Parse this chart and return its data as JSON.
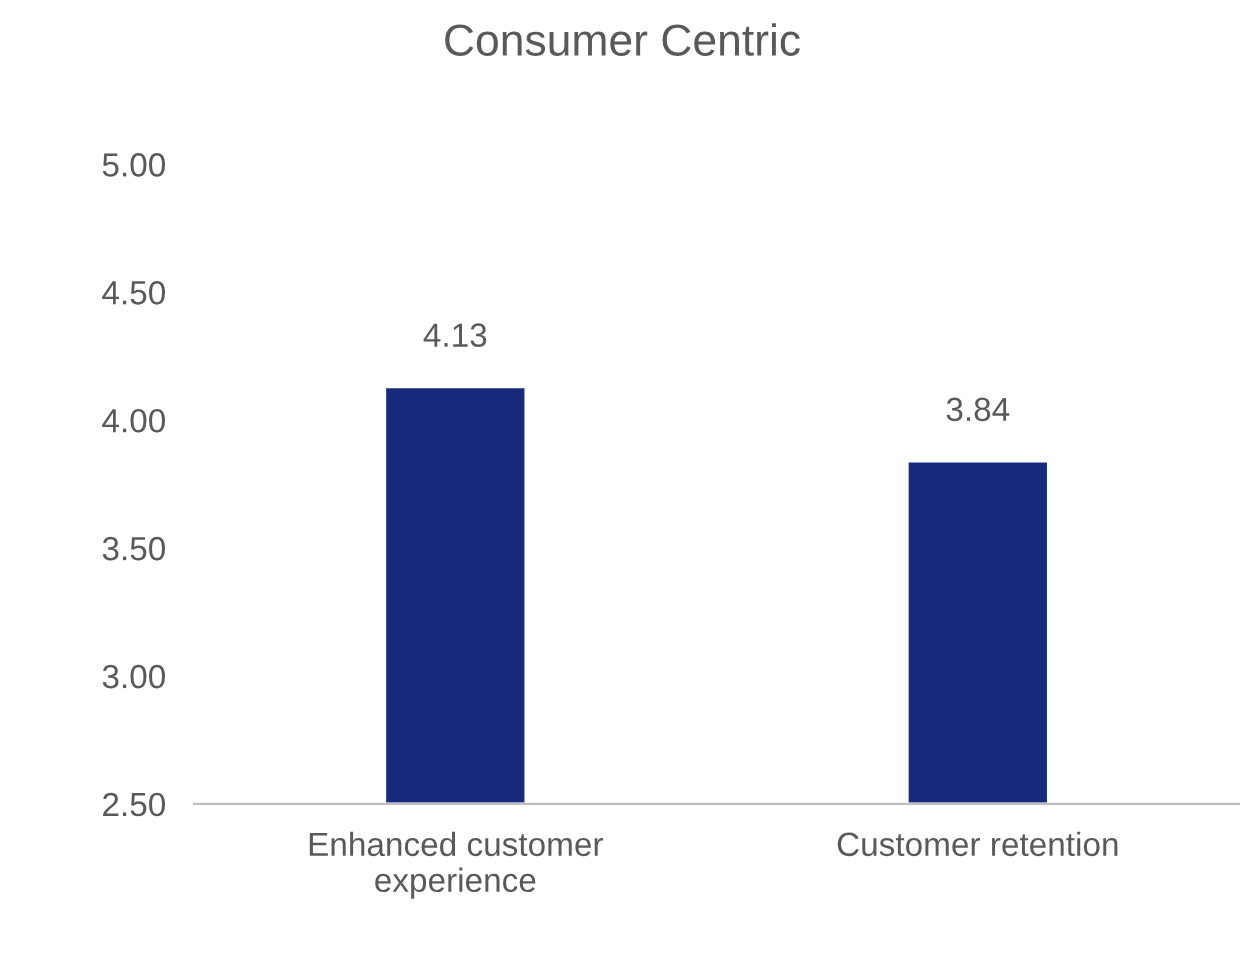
{
  "chart_data": {
    "type": "bar",
    "title": "Consumer Centric",
    "categories": [
      "Enhanced customer experience",
      "Customer retention"
    ],
    "values": [
      4.13,
      3.84
    ],
    "color": "#172a7c",
    "ylim": [
      2.5,
      5.0
    ],
    "yticks": [
      {
        "value": 2.5,
        "label": "2.50"
      },
      {
        "value": 3.0,
        "label": "3.00"
      },
      {
        "value": 3.5,
        "label": "3.50"
      },
      {
        "value": 4.0,
        "label": "4.00"
      },
      {
        "value": 4.5,
        "label": "4.50"
      },
      {
        "value": 5.0,
        "label": "5.00"
      }
    ],
    "data_labels": true,
    "grid": false,
    "legend": false
  }
}
